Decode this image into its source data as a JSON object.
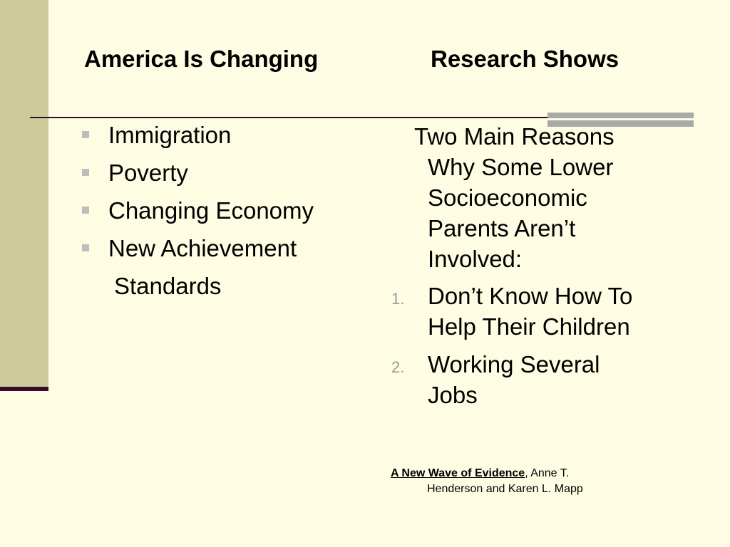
{
  "left": {
    "heading": "America Is Changing",
    "bullets": [
      "Immigration",
      "Poverty",
      "Changing Economy",
      "New Achievement"
    ],
    "bullet_continuation": "Standards"
  },
  "right": {
    "heading": "Research Shows",
    "intro_lines": [
      "Two Main Reasons",
      "Why Some Lower",
      "Socioeconomic",
      "Parents Aren’t",
      "Involved:"
    ],
    "reasons": [
      {
        "number": "1.",
        "line1": "Don’t Know How To",
        "line2": "Help Their Children"
      },
      {
        "number": "2.",
        "line1": "Working Several",
        "line2": "Jobs"
      }
    ],
    "citation": {
      "title": "A New Wave of Evidence",
      "rest": ", Anne T.",
      "line2": "Henderson and Karen L. Mapp"
    }
  },
  "colors": {
    "background": "#fefde3",
    "sidebar": "#cdcb9c",
    "accent": "#3b0a2a",
    "rule_accent": "#a9a9a9",
    "bullet": "#bdbdbd"
  }
}
